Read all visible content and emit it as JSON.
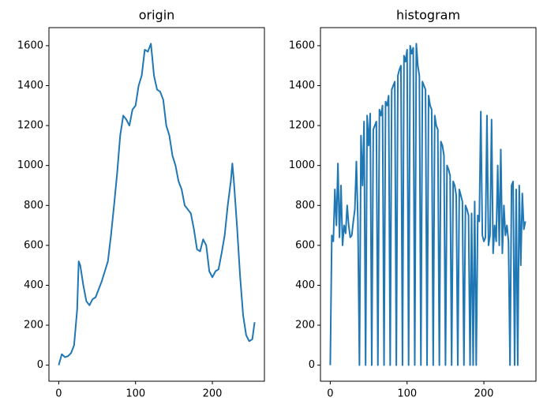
{
  "chart_data": [
    {
      "type": "line",
      "title": "origin",
      "color": "#1f77b4",
      "x": [
        0,
        4,
        8,
        12,
        16,
        20,
        24,
        26,
        28,
        32,
        36,
        40,
        44,
        48,
        52,
        56,
        60,
        64,
        68,
        72,
        76,
        80,
        84,
        88,
        92,
        96,
        100,
        104,
        108,
        112,
        116,
        120,
        124,
        128,
        132,
        136,
        140,
        144,
        148,
        152,
        156,
        160,
        164,
        168,
        172,
        176,
        180,
        184,
        188,
        192,
        196,
        200,
        204,
        208,
        212,
        216,
        220,
        224,
        226,
        228,
        232,
        236,
        240,
        244,
        248,
        252,
        255
      ],
      "values": [
        0,
        55,
        40,
        45,
        60,
        100,
        280,
        520,
        500,
        400,
        320,
        300,
        330,
        340,
        380,
        420,
        470,
        520,
        650,
        800,
        960,
        1150,
        1250,
        1230,
        1200,
        1280,
        1300,
        1400,
        1450,
        1580,
        1570,
        1610,
        1450,
        1380,
        1370,
        1330,
        1200,
        1150,
        1050,
        1000,
        920,
        880,
        800,
        780,
        760,
        680,
        580,
        570,
        630,
        600,
        470,
        440,
        470,
        480,
        560,
        650,
        800,
        920,
        1010,
        920,
        700,
        450,
        250,
        150,
        120,
        130,
        215
      ],
      "xlim": [
        -12.75,
        267.75
      ],
      "ylim": [
        -80.5,
        1690.5
      ],
      "xticks": [
        0,
        100,
        200
      ],
      "yticks": [
        0,
        200,
        400,
        600,
        800,
        1000,
        1200,
        1400,
        1600
      ]
    },
    {
      "type": "line",
      "title": "histogram",
      "color": "#1f77b4",
      "x": [
        0,
        2,
        4,
        6,
        8,
        10,
        12,
        14,
        16,
        18,
        20,
        22,
        24,
        26,
        28,
        30,
        32,
        34,
        36,
        38,
        40,
        42,
        44,
        46,
        48,
        50,
        52,
        54,
        56,
        58,
        60,
        62,
        64,
        66,
        68,
        70,
        72,
        74,
        76,
        78,
        80,
        82,
        84,
        86,
        88,
        90,
        92,
        94,
        96,
        98,
        100,
        102,
        104,
        106,
        108,
        110,
        112,
        114,
        116,
        118,
        120,
        122,
        124,
        126,
        128,
        130,
        132,
        134,
        136,
        138,
        140,
        142,
        144,
        146,
        148,
        150,
        152,
        154,
        156,
        158,
        160,
        162,
        164,
        166,
        168,
        170,
        172,
        174,
        176,
        178,
        180,
        182,
        184,
        186,
        188,
        190,
        192,
        194,
        196,
        198,
        200,
        202,
        204,
        206,
        208,
        210,
        212,
        214,
        216,
        218,
        220,
        222,
        224,
        226,
        228,
        230,
        232,
        234,
        236,
        238,
        240,
        242,
        244,
        246,
        248,
        250,
        252,
        254
      ],
      "values": [
        0,
        650,
        620,
        880,
        700,
        1010,
        640,
        900,
        600,
        700,
        660,
        800,
        700,
        640,
        650,
        720,
        780,
        1020,
        720,
        0,
        1150,
        900,
        1220,
        0,
        1250,
        1100,
        1260,
        0,
        1180,
        1200,
        1220,
        0,
        1280,
        1250,
        1300,
        0,
        1320,
        1300,
        1350,
        0,
        1380,
        1400,
        1420,
        0,
        1450,
        1480,
        1500,
        0,
        1550,
        1520,
        1580,
        0,
        1600,
        1560,
        1590,
        0,
        1610,
        1500,
        1450,
        0,
        1420,
        1400,
        1380,
        0,
        1350,
        1300,
        1280,
        0,
        1250,
        1200,
        1180,
        0,
        1120,
        1100,
        1050,
        0,
        1000,
        980,
        950,
        0,
        920,
        900,
        850,
        0,
        880,
        850,
        820,
        0,
        800,
        780,
        750,
        0,
        760,
        0,
        820,
        0,
        750,
        720,
        1270,
        650,
        620,
        640,
        1250,
        600,
        650,
        1230,
        560,
        700,
        620,
        1000,
        600,
        1080,
        560,
        800,
        650,
        700,
        620,
        0,
        900,
        920,
        0,
        880,
        0,
        900,
        500,
        860,
        680,
        720
      ],
      "xlim": [
        -12.75,
        267.75
      ],
      "ylim": [
        -80.5,
        1690.5
      ],
      "xticks": [
        0,
        100,
        200
      ],
      "yticks": [
        0,
        200,
        400,
        600,
        800,
        1000,
        1200,
        1400,
        1600
      ]
    }
  ]
}
